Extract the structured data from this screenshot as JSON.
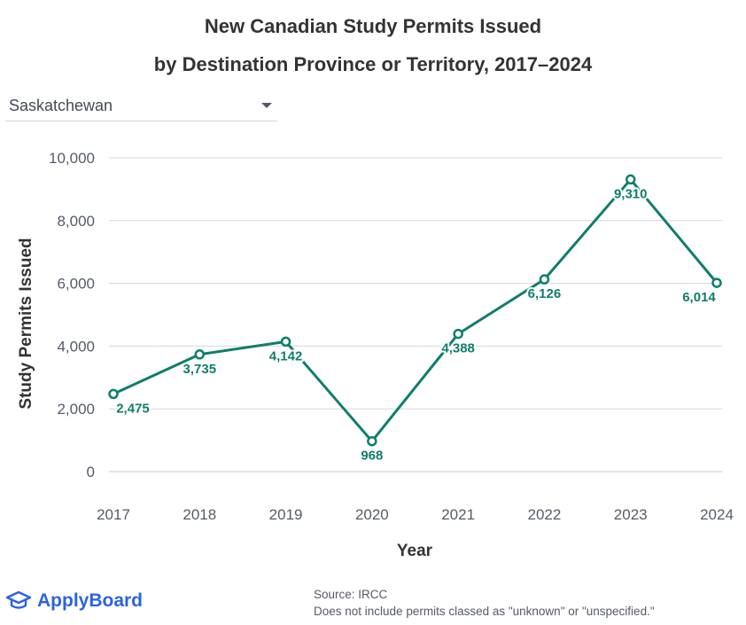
{
  "title": {
    "line1": "New Canadian Study Permits Issued",
    "line2": "by Destination Province or Territory, 2017–2024"
  },
  "dropdown": {
    "selected": "Saskatchewan",
    "icon": "chevron-down-icon"
  },
  "chart_data": {
    "type": "line",
    "x": [
      "2017",
      "2018",
      "2019",
      "2020",
      "2021",
      "2022",
      "2023",
      "2024"
    ],
    "series": [
      {
        "values": [
          2475,
          3735,
          4142,
          968,
          4388,
          6126,
          9310,
          6014
        ],
        "labels": [
          "2,475",
          "3,735",
          "4,142",
          "968",
          "4,388",
          "6,126",
          "9,310",
          "6,014"
        ],
        "color": "#0f7e6a"
      }
    ],
    "xlabel": "Year",
    "ylabel": "Study Permits Issued",
    "ylim": [
      0,
      10000
    ],
    "yticks": [
      0,
      2000,
      4000,
      6000,
      8000,
      10000
    ],
    "ytick_labels": [
      "0",
      "2,000",
      "4,000",
      "6,000",
      "8,000",
      "10,000"
    ],
    "grid": true,
    "legend": "none"
  },
  "brand": {
    "name": "ApplyBoard",
    "color": "#2b63e0",
    "icon": "graduation-cap-icon"
  },
  "source": {
    "line1": "Source: IRCC",
    "line2": "Does not include permits classed as \"unknown\" or \"unspecified.\""
  }
}
